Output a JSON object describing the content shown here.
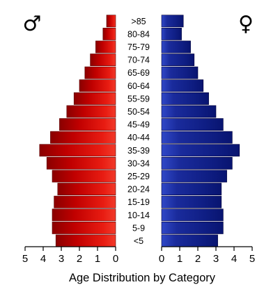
{
  "chart_data": {
    "type": "bar",
    "title": "Age Distribution by Category",
    "categories": [
      ">85",
      "80-84",
      "75-79",
      "70-74",
      "65-69",
      "60-64",
      "55-59",
      "50-54",
      "45-49",
      "40-44",
      "35-39",
      "30-34",
      "25-29",
      "20-24",
      "15-19",
      "10-14",
      "5-9",
      "<5"
    ],
    "series": [
      {
        "name": "male",
        "values": [
          0.5,
          0.7,
          1.1,
          1.4,
          1.7,
          2.0,
          2.3,
          2.7,
          3.1,
          3.6,
          4.2,
          3.8,
          3.5,
          3.2,
          3.4,
          3.5,
          3.5,
          3.3
        ],
        "color": "#d40000"
      },
      {
        "name": "female",
        "values": [
          1.2,
          1.1,
          1.6,
          1.8,
          2.0,
          2.3,
          2.6,
          3.0,
          3.4,
          3.9,
          4.3,
          3.9,
          3.6,
          3.3,
          3.3,
          3.4,
          3.4,
          3.1
        ],
        "color": "#1a2b9c"
      }
    ],
    "x_ticks": [
      "5",
      "4",
      "3",
      "2",
      "1",
      "0",
      "0",
      "1",
      "2",
      "3",
      "4",
      "5"
    ],
    "xlim": [
      0,
      5
    ],
    "grid": false,
    "legend": {
      "male_symbol": "♂",
      "female_symbol": "♀",
      "male_position": "top-left",
      "female_position": "top-right"
    }
  },
  "colors": {
    "male_light": "#f23a2a",
    "male": "#d40000",
    "male_dark": "#8a0000",
    "female_light": "#3048c8",
    "female": "#1a2b9c",
    "female_dark": "#081470"
  }
}
